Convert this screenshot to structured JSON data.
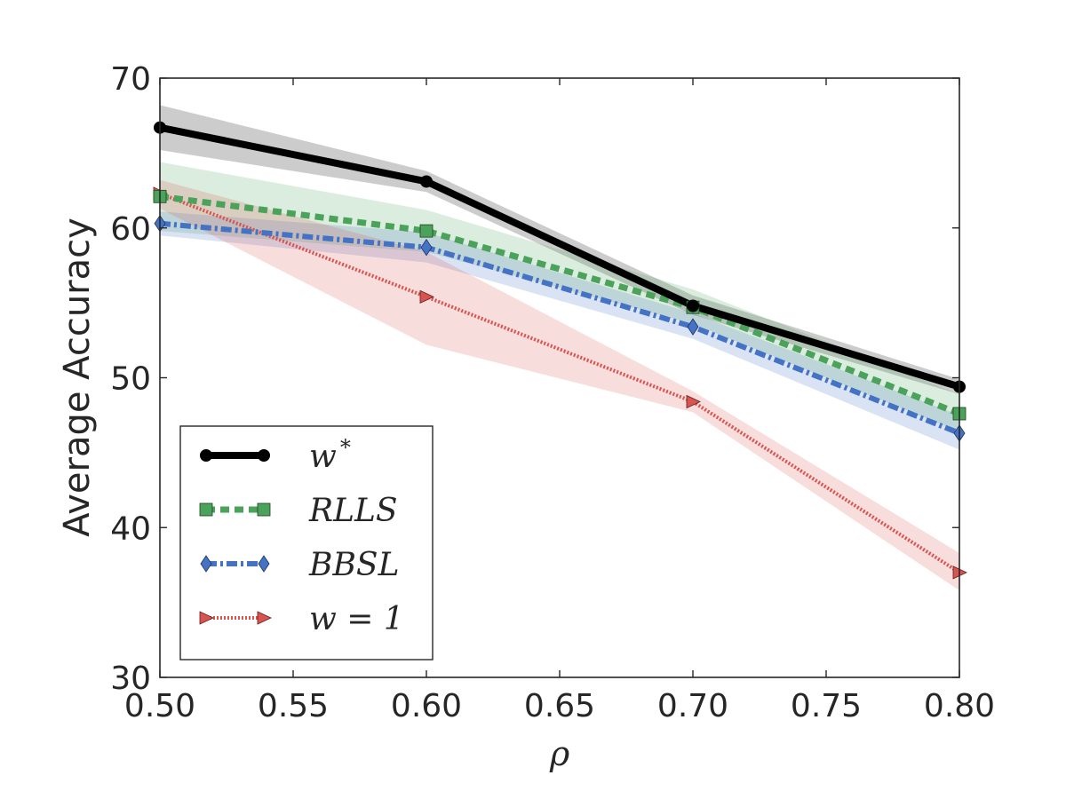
{
  "chart_data": {
    "type": "line",
    "title": "",
    "xlabel": "ρ",
    "ylabel": "Average Accuracy",
    "xlim": [
      0.5,
      0.8
    ],
    "ylim": [
      30,
      70
    ],
    "x_ticks": [
      0.5,
      0.55,
      0.6,
      0.65,
      0.7,
      0.75,
      0.8
    ],
    "x_tick_labels": [
      "0.50",
      "0.55",
      "0.60",
      "0.65",
      "0.70",
      "0.75",
      "0.80"
    ],
    "y_ticks": [
      30,
      40,
      50,
      60,
      70
    ],
    "y_tick_labels": [
      "30",
      "40",
      "50",
      "60",
      "70"
    ],
    "grid": false,
    "legend_position": "lower-left",
    "x": [
      0.5,
      0.6,
      0.7,
      0.8
    ],
    "series": [
      {
        "name": "w*",
        "legend_main": "w",
        "legend_sup": "*",
        "color": "#000000",
        "marker": "circle",
        "line_style": "solid",
        "values": [
          66.7,
          63.1,
          54.8,
          49.4
        ],
        "band_lower": [
          65.2,
          62.4,
          54.2,
          48.9
        ],
        "band_upper": [
          68.2,
          63.8,
          55.5,
          49.9
        ]
      },
      {
        "name": "RLLS",
        "legend_main": "RLLS",
        "legend_sup": "",
        "color": "#4ba35b",
        "marker": "square",
        "line_style": "dashed",
        "values": [
          62.1,
          59.8,
          54.7,
          47.6
        ],
        "band_lower": [
          59.8,
          58.4,
          53.6,
          46.4
        ],
        "band_upper": [
          64.4,
          61.2,
          55.9,
          48.9
        ]
      },
      {
        "name": "BBSL",
        "legend_main": "BBSL",
        "legend_sup": "",
        "color": "#4472c4",
        "marker": "diamond",
        "line_style": "dashdot",
        "values": [
          60.3,
          58.7,
          53.4,
          46.3
        ],
        "band_lower": [
          59.5,
          57.7,
          52.6,
          45.2
        ],
        "band_upper": [
          61.1,
          59.7,
          54.3,
          47.5
        ]
      },
      {
        "name": "w = 1",
        "legend_main": "w = 1",
        "legend_sup": "",
        "color": "#d9534f",
        "marker": "triangle-right",
        "line_style": "dotted",
        "values": [
          62.3,
          55.4,
          48.4,
          37.0
        ],
        "band_lower": [
          61.3,
          52.2,
          47.7,
          35.8
        ],
        "band_upper": [
          63.2,
          58.4,
          49.1,
          38.3
        ]
      }
    ]
  }
}
